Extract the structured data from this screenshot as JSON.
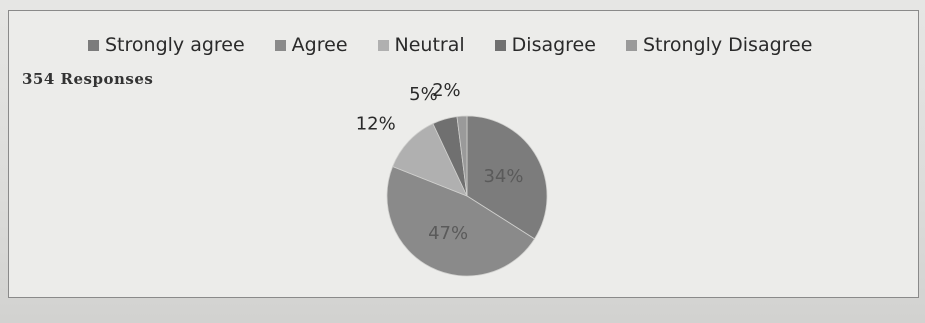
{
  "chart_data": {
    "type": "pie",
    "title": "",
    "subtitle": "354 Responses",
    "categories": [
      "Strongly agree",
      "Agree",
      "Neutral",
      "Disagree",
      "Strongly Disagree"
    ],
    "values": [
      34,
      47,
      12,
      5,
      2
    ],
    "labels": [
      "34%",
      "47%",
      "12%",
      "5%",
      "2%"
    ],
    "colors": [
      "#7c7c7c",
      "#8a8a8a",
      "#b0b0b0",
      "#707070",
      "#9a9a9a"
    ],
    "legend_position": "top"
  }
}
